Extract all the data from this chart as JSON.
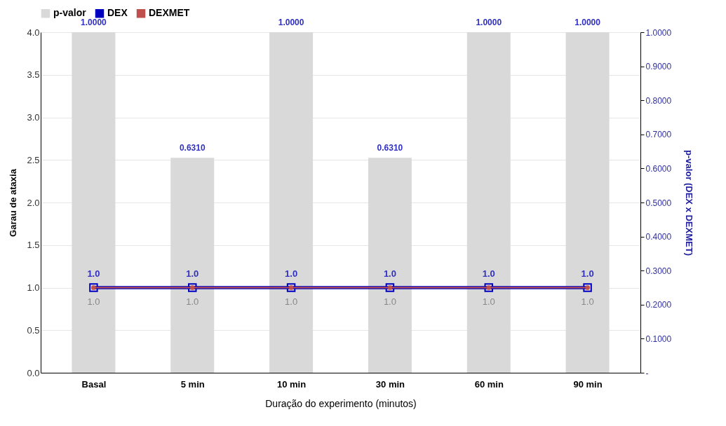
{
  "chart_data": {
    "type": "bar",
    "xlabel": "Duração do experimento (minutos)",
    "ylabel": "Garau de ataxia",
    "y2label": "p-valor (DEX x DEXMET)",
    "categories": [
      "Basal",
      "5 min",
      "10 min",
      "30 min",
      "60 min",
      "90 min"
    ],
    "series": [
      {
        "name": "p-valor",
        "axis": "y2",
        "color": "#d9d9d9",
        "values": [
          1.0,
          0.631,
          1.0,
          0.631,
          1.0,
          1.0
        ],
        "value_labels": [
          "1.0000",
          "0.6310",
          "1.0000",
          "0.6310",
          "1.0000",
          "1.0000"
        ]
      },
      {
        "name": "DEX",
        "type": "line",
        "color": "#0000c0",
        "marker": "square",
        "values": [
          1.0,
          1.0,
          1.0,
          1.0,
          1.0,
          1.0
        ],
        "value_labels": [
          "1.0",
          "1.0",
          "1.0",
          "1.0",
          "1.0",
          "1.0"
        ]
      },
      {
        "name": "DEXMET",
        "type": "line",
        "color": "#c0504d",
        "marker": "circle",
        "values": [
          1.0,
          1.0,
          1.0,
          1.0,
          1.0,
          1.0
        ],
        "value_labels": [
          "1.0",
          "1.0",
          "1.0",
          "1.0",
          "1.0",
          "1.0"
        ]
      }
    ],
    "ylim": [
      0,
      4
    ],
    "yticks": [
      {
        "value": 0,
        "label": "0.0"
      },
      {
        "value": 0.5,
        "label": "0.5"
      },
      {
        "value": 1,
        "label": "1.0"
      },
      {
        "value": 1.5,
        "label": "1.5"
      },
      {
        "value": 2,
        "label": "2.0"
      },
      {
        "value": 2.5,
        "label": "2.5"
      },
      {
        "value": 3,
        "label": "3.0"
      },
      {
        "value": 3.5,
        "label": "3.5"
      },
      {
        "value": 4,
        "label": "4.0"
      }
    ],
    "y2lim": [
      0,
      1
    ],
    "y2ticks": [
      {
        "value": 0,
        "label": "-"
      },
      {
        "value": 0.1,
        "label": "0.1000"
      },
      {
        "value": 0.2,
        "label": "0.2000"
      },
      {
        "value": 0.3,
        "label": "0.3000"
      },
      {
        "value": 0.4,
        "label": "0.4000"
      },
      {
        "value": 0.5,
        "label": "0.5000"
      },
      {
        "value": 0.6,
        "label": "0.6000"
      },
      {
        "value": 0.7,
        "label": "0.7000"
      },
      {
        "value": 0.8,
        "label": "0.8000"
      },
      {
        "value": 0.9,
        "label": "0.9000"
      },
      {
        "value": 1,
        "label": "1.0000"
      }
    ],
    "grid": "y",
    "legend": "top"
  }
}
